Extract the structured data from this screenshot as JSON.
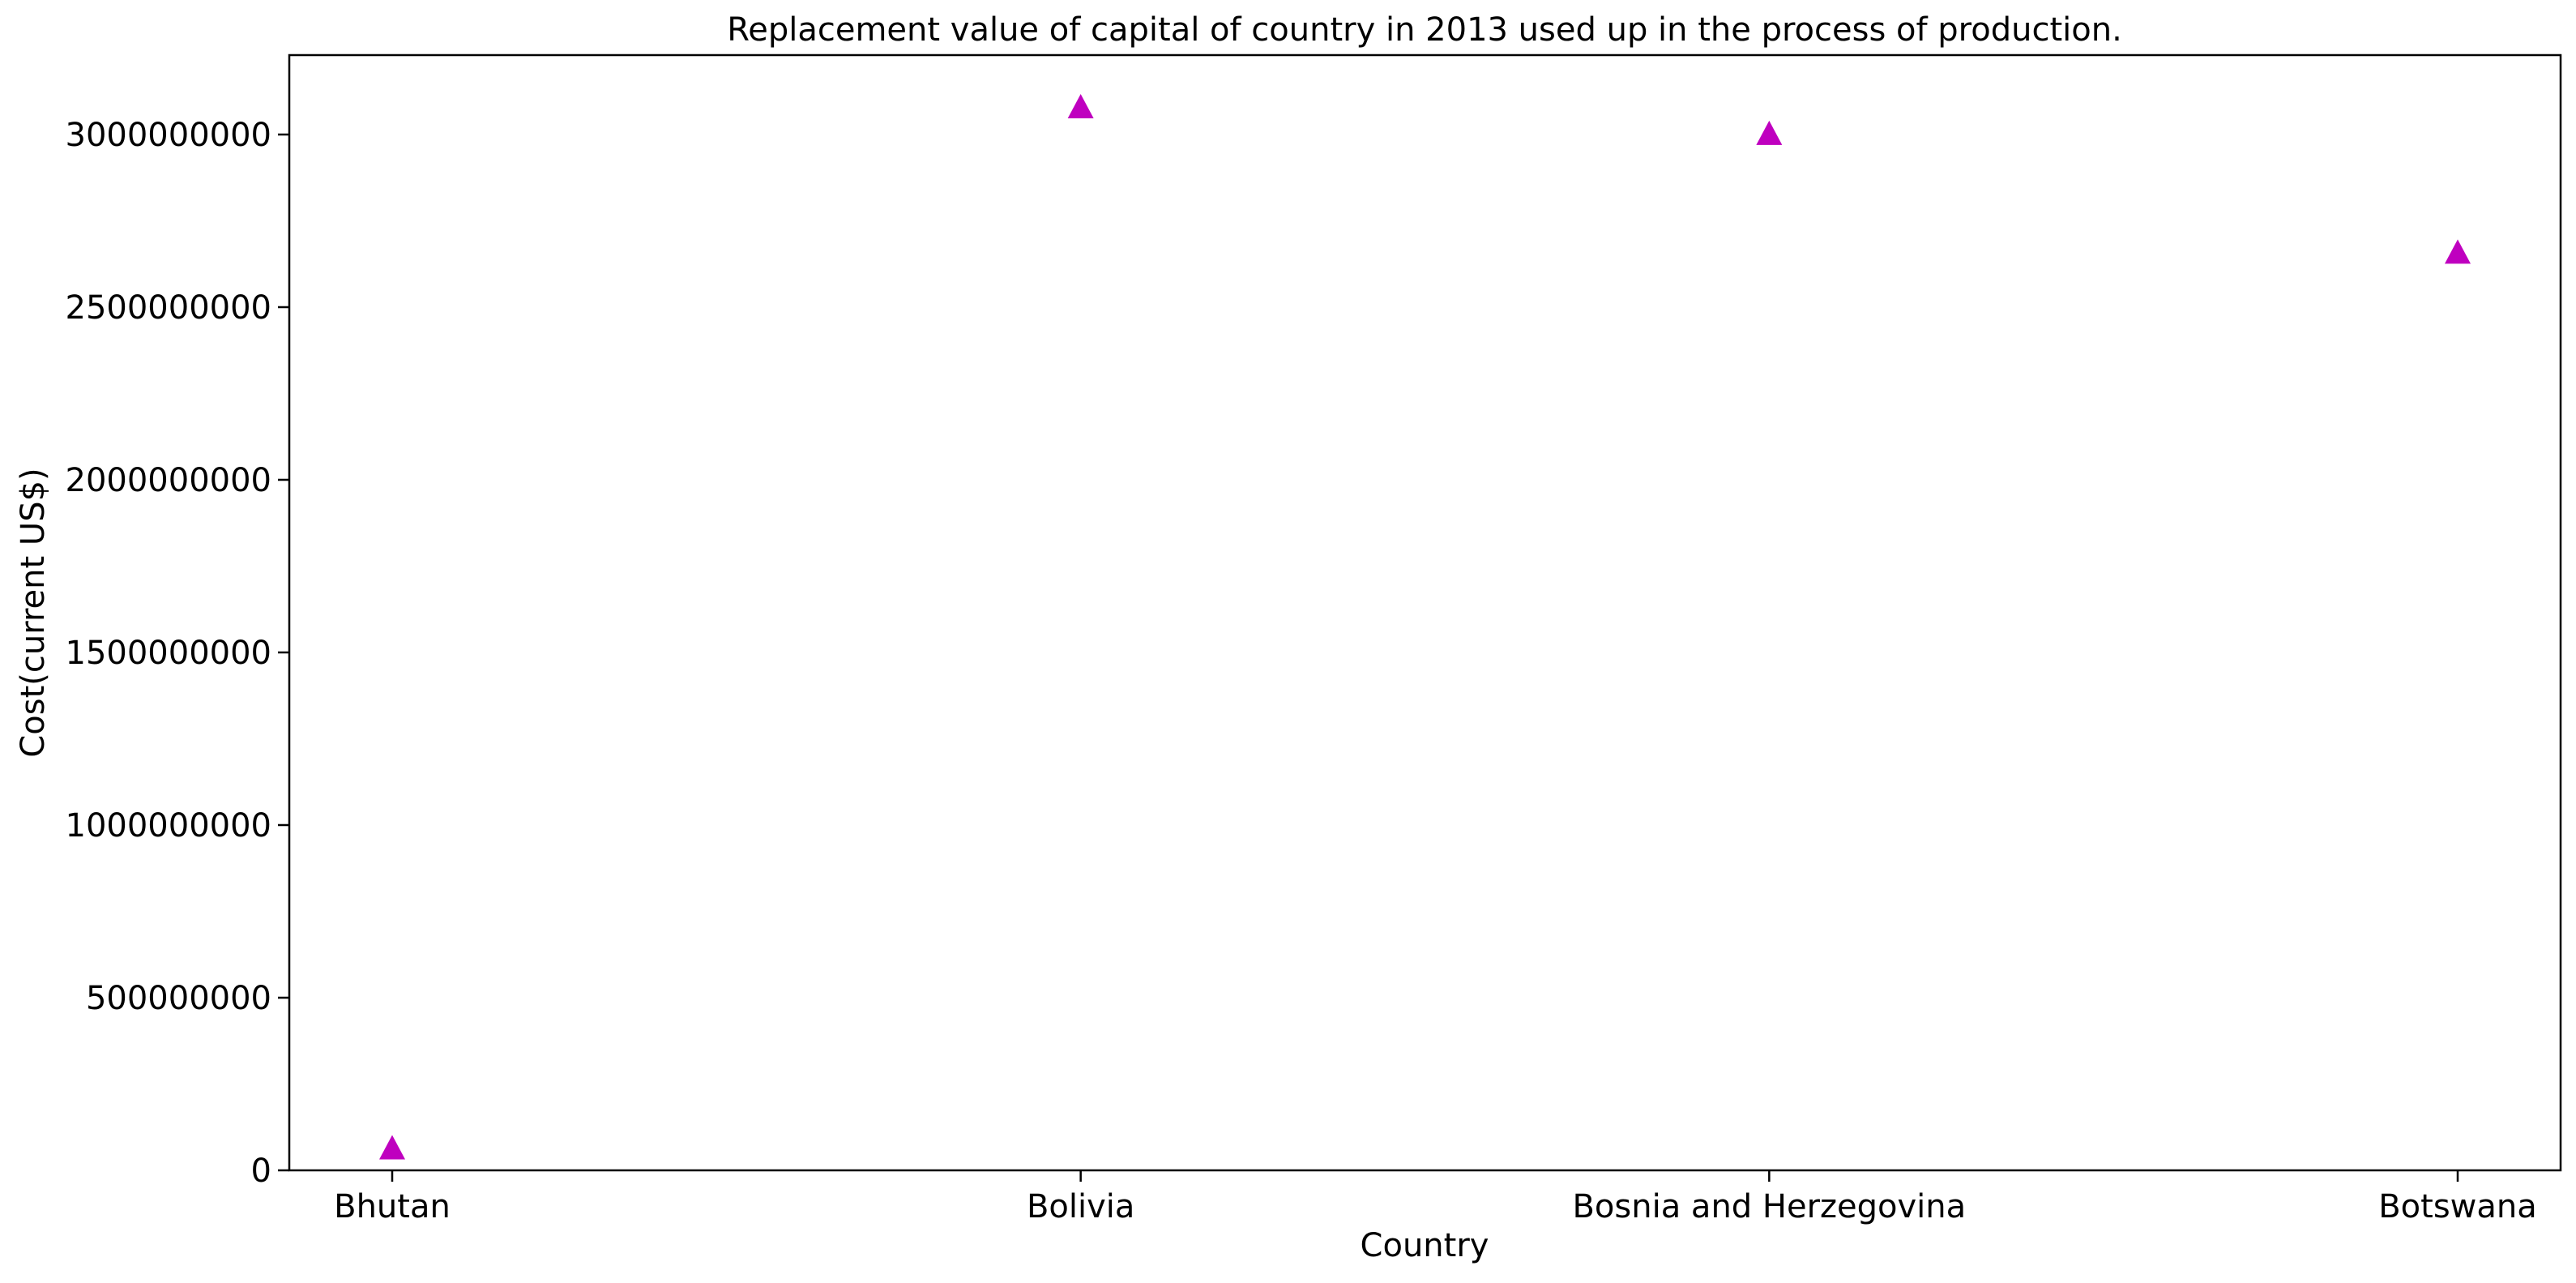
{
  "chart_data": {
    "type": "scatter",
    "title": "Replacement value of capital of country in 2013 used up in the process of production.",
    "xlabel": "Country",
    "ylabel": "Cost(current US$)",
    "categories": [
      "Bhutan",
      "Bolivia",
      "Bosnia and Herzegovina",
      "Botswana"
    ],
    "series": [
      {
        "marker": "triangle-up",
        "color": "#bf00bf",
        "values": [
          60000000,
          3075000000,
          2998000000,
          2654000000
        ]
      }
    ],
    "ylim": [
      0,
      3230000000
    ],
    "yticks": [
      0,
      500000000,
      1000000000,
      1500000000,
      2000000000,
      2500000000,
      3000000000
    ],
    "ytick_labels": [
      "0",
      "500000000",
      "1000000000",
      "1500000000",
      "2000000000",
      "2500000000",
      "3000000000"
    ],
    "grid": false,
    "legend": "none"
  }
}
